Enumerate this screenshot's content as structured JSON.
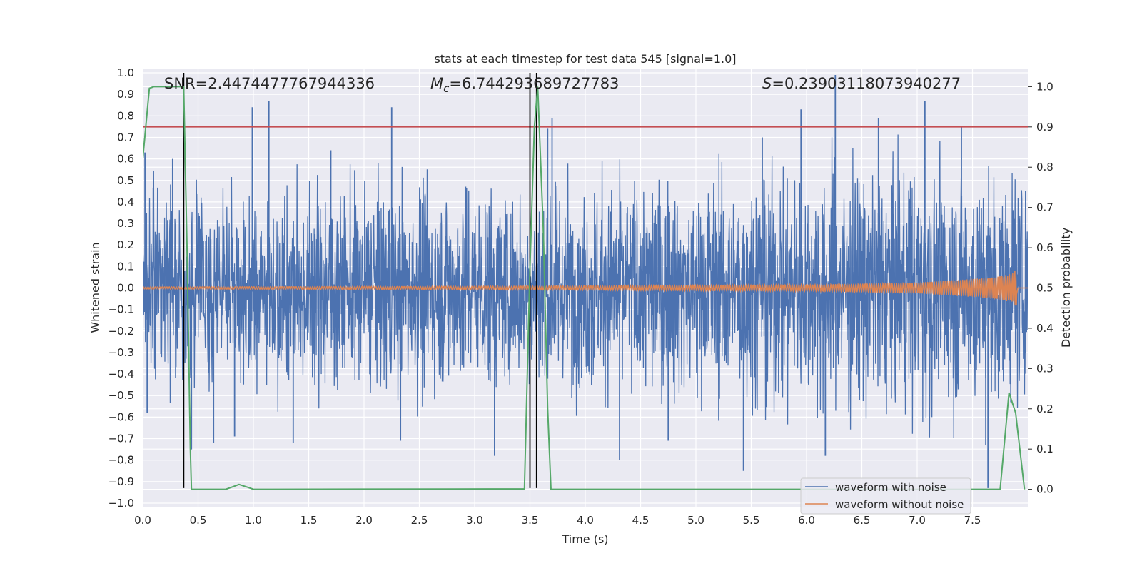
{
  "chart_data": {
    "type": "line",
    "title": "stats at each timestep for test data 545 [signal=1.0]",
    "xlabel": "Time (s)",
    "ylabel": "Whitened strain",
    "y2label": "Detection probability",
    "xlim": [
      0,
      8
    ],
    "ylim": [
      -1.02,
      1.02
    ],
    "y2lim": [
      -0.045,
      1.045
    ],
    "xticks": [
      0.0,
      0.5,
      1.0,
      1.5,
      2.0,
      2.5,
      3.0,
      3.5,
      4.0,
      4.5,
      5.0,
      5.5,
      6.0,
      6.5,
      7.0,
      7.5
    ],
    "xtick_labels": [
      "0.0",
      "0.5",
      "1.0",
      "1.5",
      "2.0",
      "2.5",
      "3.0",
      "3.5",
      "4.0",
      "4.5",
      "5.0",
      "5.5",
      "6.0",
      "6.5",
      "7.0",
      "7.5"
    ],
    "yticks": [
      -1.0,
      -0.9,
      -0.8,
      -0.7,
      -0.6,
      -0.5,
      -0.4,
      -0.3,
      -0.2,
      -0.1,
      0.0,
      0.1,
      0.2,
      0.3,
      0.4,
      0.5,
      0.6,
      0.7,
      0.8,
      0.9,
      1.0
    ],
    "ytick_labels": [
      "−1.0",
      "−0.9",
      "−0.8",
      "−0.7",
      "−0.6",
      "−0.5",
      "−0.4",
      "−0.3",
      "−0.2",
      "−0.1",
      "0.0",
      "0.1",
      "0.2",
      "0.3",
      "0.4",
      "0.5",
      "0.6",
      "0.7",
      "0.8",
      "0.9",
      "1.0"
    ],
    "y2ticks": [
      0.0,
      0.1,
      0.2,
      0.3,
      0.4,
      0.5,
      0.6,
      0.7,
      0.8,
      0.9,
      1.0
    ],
    "y2tick_labels": [
      "0.0",
      "0.1",
      "0.2",
      "0.3",
      "0.4",
      "0.5",
      "0.6",
      "0.7",
      "0.8",
      "0.9",
      "1.0"
    ],
    "grid": true,
    "legend_position": "lower-right",
    "annotations": {
      "snr": "SNR=2.4474477767944336",
      "mc_symbol": "M",
      "mc_sub": "c",
      "mc_value": "=6.744293689727783",
      "s_symbol": "S",
      "s_value": "=0.23903118073940277"
    },
    "threshold": {
      "value": 0.9,
      "axis": "right",
      "color": "#c44e52"
    },
    "vlines": [
      0.37,
      3.5,
      3.56
    ],
    "series": [
      {
        "name": "waveform with noise",
        "color": "#4c72b0",
        "axis": "left",
        "envelope": [
          [
            0.0,
            0.45
          ],
          [
            0.2,
            0.5
          ],
          [
            0.5,
            0.48
          ],
          [
            1.0,
            0.5
          ],
          [
            1.5,
            0.5
          ],
          [
            2.0,
            0.5
          ],
          [
            2.5,
            0.52
          ],
          [
            3.0,
            0.52
          ],
          [
            3.5,
            0.5
          ],
          [
            4.0,
            0.52
          ],
          [
            4.5,
            0.55
          ],
          [
            5.0,
            0.55
          ],
          [
            5.5,
            0.58
          ],
          [
            6.0,
            0.6
          ],
          [
            6.5,
            0.62
          ],
          [
            7.0,
            0.62
          ],
          [
            7.5,
            0.6
          ],
          [
            8.0,
            0.55
          ]
        ],
        "peaks": [
          [
            0.02,
            0.63
          ],
          [
            0.04,
            -0.58
          ],
          [
            0.27,
            0.6
          ],
          [
            0.44,
            -0.75
          ],
          [
            0.64,
            -0.72
          ],
          [
            0.83,
            -0.69
          ],
          [
            0.99,
            0.84
          ],
          [
            1.14,
            0.87
          ],
          [
            1.36,
            -0.72
          ],
          [
            1.7,
            0.64
          ],
          [
            2.25,
            0.84
          ],
          [
            2.33,
            -0.71
          ],
          [
            3.18,
            -0.78
          ],
          [
            3.66,
            0.74
          ],
          [
            3.7,
            0.79
          ],
          [
            4.31,
            -0.8
          ],
          [
            4.75,
            -0.71
          ],
          [
            5.43,
            -0.85
          ],
          [
            5.6,
            0.7
          ],
          [
            5.95,
            0.83
          ],
          [
            6.17,
            -0.78
          ],
          [
            6.26,
            0.99
          ],
          [
            6.65,
            0.79
          ],
          [
            7.07,
            0.87
          ],
          [
            7.4,
            0.75
          ],
          [
            7.62,
            -0.73
          ],
          [
            7.64,
            -0.93
          ]
        ]
      },
      {
        "name": "waveform without noise",
        "color": "#dd8452",
        "axis": "left",
        "amplitude_envelope": [
          [
            0.0,
            0.005
          ],
          [
            3.0,
            0.008
          ],
          [
            6.0,
            0.015
          ],
          [
            7.0,
            0.025
          ],
          [
            7.6,
            0.045
          ],
          [
            7.85,
            0.065
          ],
          [
            7.9,
            0.09
          ]
        ],
        "end_time": 7.9
      },
      {
        "name": "detection probability",
        "color": "#55a868",
        "axis": "right",
        "points": [
          [
            0.0,
            0.82
          ],
          [
            0.06,
            0.996
          ],
          [
            0.1,
            1.0
          ],
          [
            0.37,
            1.0
          ],
          [
            0.4,
            0.6
          ],
          [
            0.43,
            0.1
          ],
          [
            0.44,
            0.0
          ],
          [
            0.75,
            0.0
          ],
          [
            0.8,
            0.005
          ],
          [
            0.87,
            0.012
          ],
          [
            0.95,
            0.005
          ],
          [
            1.0,
            0.0
          ],
          [
            3.45,
            0.001
          ],
          [
            3.5,
            0.55
          ],
          [
            3.54,
            0.9
          ],
          [
            3.57,
            1.0
          ],
          [
            3.62,
            0.65
          ],
          [
            3.66,
            0.2
          ],
          [
            3.69,
            0.0
          ],
          [
            7.75,
            0.0
          ],
          [
            7.83,
            0.24
          ],
          [
            7.89,
            0.19
          ],
          [
            7.97,
            0.0
          ]
        ]
      }
    ]
  }
}
